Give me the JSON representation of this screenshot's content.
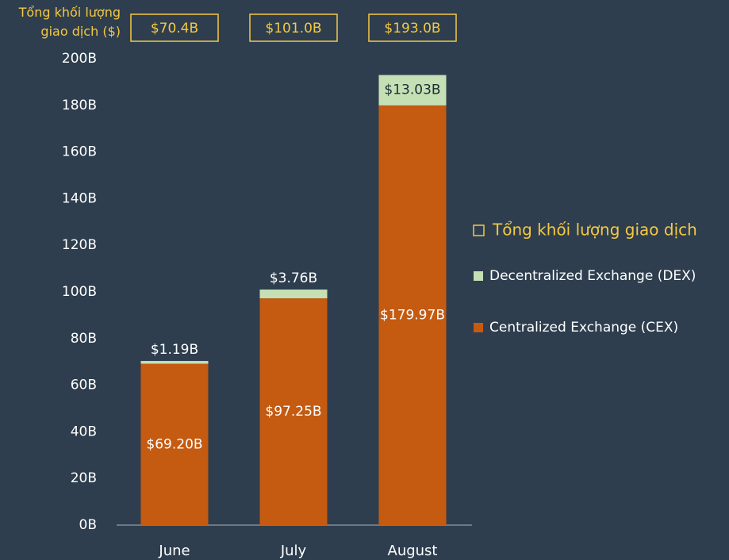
{
  "chart_data": {
    "type": "stacked_bar",
    "y_label": "Tổng khối lượng giao dịch ($)",
    "categories": [
      "June",
      "July",
      "August"
    ],
    "series": [
      {
        "name": "Centralized Exchange (CEX)",
        "color": "#c55a11",
        "values": [
          69.2,
          97.25,
          179.97
        ],
        "value_labels": [
          "$69.20B",
          "$97.25B",
          "$179.97B"
        ]
      },
      {
        "name": "Decentralized Exchange (DEX)",
        "color": "#c5e0b4",
        "values": [
          1.19,
          3.76,
          13.03
        ],
        "value_labels": [
          "$1.19B",
          "$3.76B",
          "$13.03B"
        ]
      }
    ],
    "totals": {
      "name": "Tổng khối lượng giao dịch",
      "color": "#f5c842",
      "values": [
        70.4,
        101.0,
        193.0
      ],
      "value_labels": [
        "$70.4B",
        "$101.0B",
        "$193.0B"
      ]
    },
    "ylim": [
      0,
      200
    ],
    "yticks": [
      {
        "value": 0,
        "label": "0B"
      },
      {
        "value": 20,
        "label": "20B"
      },
      {
        "value": 40,
        "label": "40B"
      },
      {
        "value": 60,
        "label": "60B"
      },
      {
        "value": 80,
        "label": "80B"
      },
      {
        "value": 100,
        "label": "100B"
      },
      {
        "value": 120,
        "label": "120B"
      },
      {
        "value": 140,
        "label": "140B"
      },
      {
        "value": 160,
        "label": "160B"
      },
      {
        "value": 180,
        "label": "180B"
      },
      {
        "value": 200,
        "label": "200B"
      }
    ],
    "legend": "right"
  }
}
